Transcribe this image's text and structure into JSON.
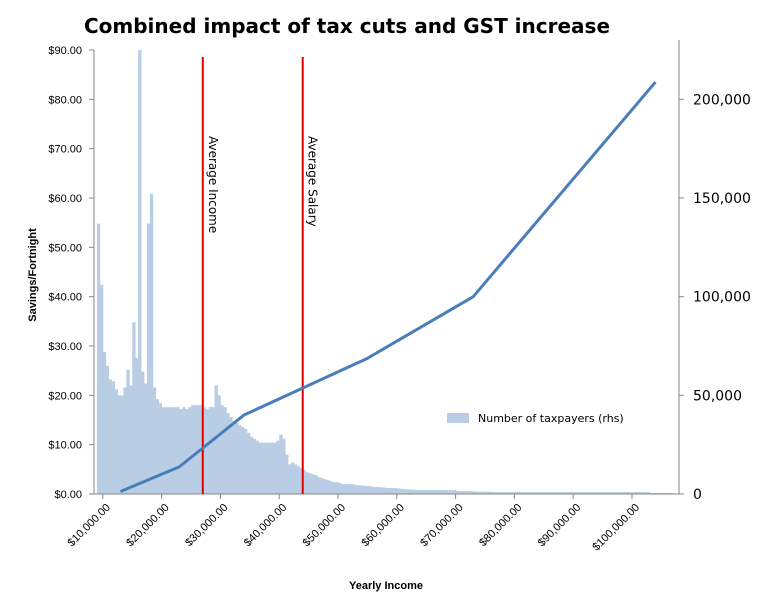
{
  "chart_data": {
    "type": "line",
    "title": "Combined impact of tax cuts and GST increase",
    "xlabel": "Yearly Income",
    "ylabel": "Savings/Fortnight",
    "xlim": [
      8500,
      108000
    ],
    "ylim": [
      0,
      90
    ],
    "y2lim": [
      0,
      225000
    ],
    "x_ticks": [
      10000,
      20000,
      30000,
      40000,
      50000,
      60000,
      70000,
      80000,
      90000,
      100000
    ],
    "x_tick_labels": [
      "$10,000.00",
      "$20,000.00",
      "$30,000.00",
      "$40,000.00",
      "$50,000.00",
      "$60,000.00",
      "$70,000.00",
      "$80,000.00",
      "$90,000.00",
      "$100,000.00"
    ],
    "y_ticks": [
      0,
      10,
      20,
      30,
      40,
      50,
      60,
      70,
      80,
      90
    ],
    "y_tick_labels": [
      "$0.00",
      "$10.00",
      "$20.00",
      "$30.00",
      "$40.00",
      "$50.00",
      "$60.00",
      "$70.00",
      "$80.00",
      "$90.00"
    ],
    "y2_ticks": [
      0,
      50000,
      100000,
      150000,
      200000
    ],
    "y2_tick_labels": [
      "0",
      "50,000",
      "100,000",
      "150,000",
      "200,000"
    ],
    "grid": false,
    "legend_position": "inside-right",
    "series": [
      {
        "type": "line",
        "axis": "left",
        "color": "#4a7ebb",
        "x": [
          13000,
          23000,
          34000,
          55000,
          73000,
          104000
        ],
        "values": [
          0.5,
          5.5,
          16,
          27.5,
          40,
          83.5
        ]
      },
      {
        "type": "histogram",
        "name": "Number of taxpayers (rhs)",
        "axis": "right",
        "color": "#b9cde5",
        "bin_start": 9000,
        "bin_width": 500,
        "values": [
          137000,
          106000,
          72000,
          65000,
          58000,
          57000,
          53000,
          50000,
          50000,
          54000,
          63000,
          55000,
          87000,
          69000,
          227000,
          62000,
          56000,
          137000,
          152000,
          54000,
          48000,
          46000,
          44000,
          44000,
          44000,
          44000,
          44000,
          44000,
          43000,
          44000,
          43000,
          44000,
          45000,
          45000,
          45000,
          45000,
          44000,
          43000,
          44000,
          44000,
          55000,
          50000,
          45000,
          44000,
          41000,
          39000,
          37000,
          36000,
          35000,
          34000,
          33000,
          31000,
          29000,
          28000,
          27000,
          26000,
          26000,
          26000,
          26000,
          26000,
          26000,
          27000,
          30000,
          28000,
          20000,
          15000,
          16000,
          15000,
          14000,
          13000,
          12000,
          11000,
          10500,
          10000,
          9500,
          8500,
          8000,
          7500,
          7000,
          6500,
          6000,
          6000,
          5500,
          5000,
          5000,
          5000,
          5000,
          4800,
          4500,
          4500,
          4300,
          4000,
          4000,
          3800,
          3500,
          3500,
          3500,
          3300,
          3000,
          3000,
          3000,
          3000,
          2800,
          2600,
          2500,
          2400,
          2300,
          2200,
          2100,
          2000,
          2000,
          2000,
          2000,
          2000,
          2000,
          2000,
          2000,
          2000,
          2000,
          2000,
          2000,
          2000,
          1600,
          1500,
          1500,
          1500,
          1500,
          1400,
          1300,
          1200,
          1200,
          1200,
          1200,
          1100,
          1100,
          1000,
          1000,
          1000,
          1000,
          1000,
          1000,
          1000,
          1000,
          1000,
          1000,
          1000,
          1000,
          1000,
          1000,
          1000,
          1000,
          1000,
          1000,
          1000,
          1000,
          1000,
          1000,
          1000,
          1000,
          1000,
          1000,
          1000,
          1000,
          1000,
          1000,
          1000,
          1000,
          1000,
          1000,
          1000,
          1000,
          1000,
          1000,
          1000,
          1000,
          1000,
          1000,
          1000,
          1000,
          1000,
          1000,
          1000,
          1000,
          1000,
          1000,
          1000,
          1000,
          1000,
          500,
          500,
          500,
          500,
          500,
          500,
          500,
          500
        ]
      }
    ],
    "annotations": [
      {
        "label": "Average Income",
        "x": 27000,
        "color": "#e00000"
      },
      {
        "label": "Average Salary",
        "x": 44000,
        "color": "#e00000"
      }
    ]
  }
}
